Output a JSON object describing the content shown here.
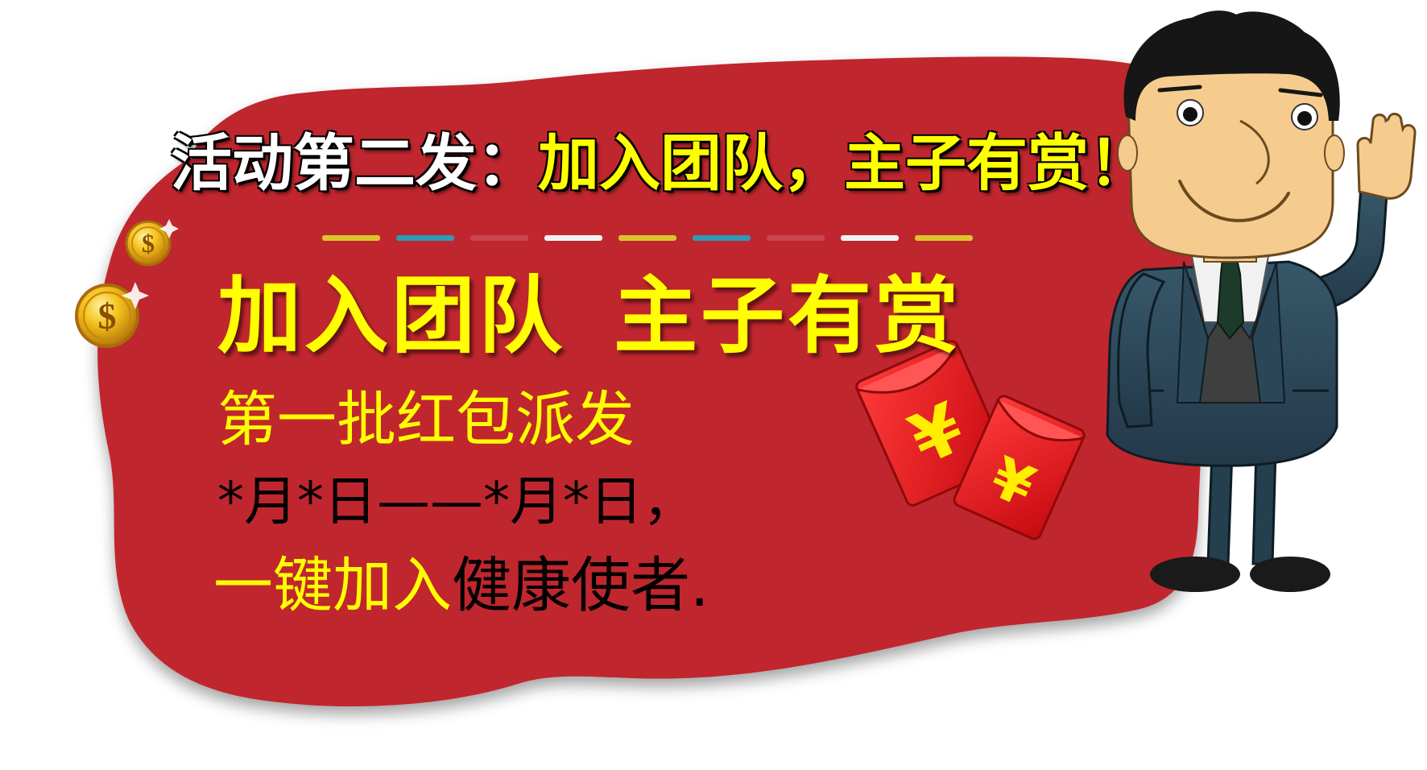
{
  "headline": {
    "prefix": "活动第二发：",
    "highlight": "加入团队，主子有赏！"
  },
  "main_title": {
    "left": "加入团队",
    "right": "主子有赏"
  },
  "batch_line": "第一批红包派发",
  "date_line": "*月*日——*月*日，",
  "join_line": {
    "highlight": "一键加入",
    "rest": "健康使者."
  },
  "red_envelope": {
    "symbol": "¥"
  },
  "coin": {
    "symbol": "$"
  },
  "colors": {
    "blob": "#c0272d",
    "yellow": "#ffff00",
    "envelope": "#e8121a",
    "coin": "#f3b413",
    "suit": "#2f4b58",
    "vest": "#3f3f3f",
    "skin": "#f6cc8e",
    "hair": "#161616"
  },
  "dash_colors": [
    "#d9c62b",
    "#2f9ab8",
    "#c94450",
    "#f2f2f2",
    "#d9c62b",
    "#2f9ab8",
    "#c94450",
    "#f2f2f2",
    "#d9c62b"
  ]
}
